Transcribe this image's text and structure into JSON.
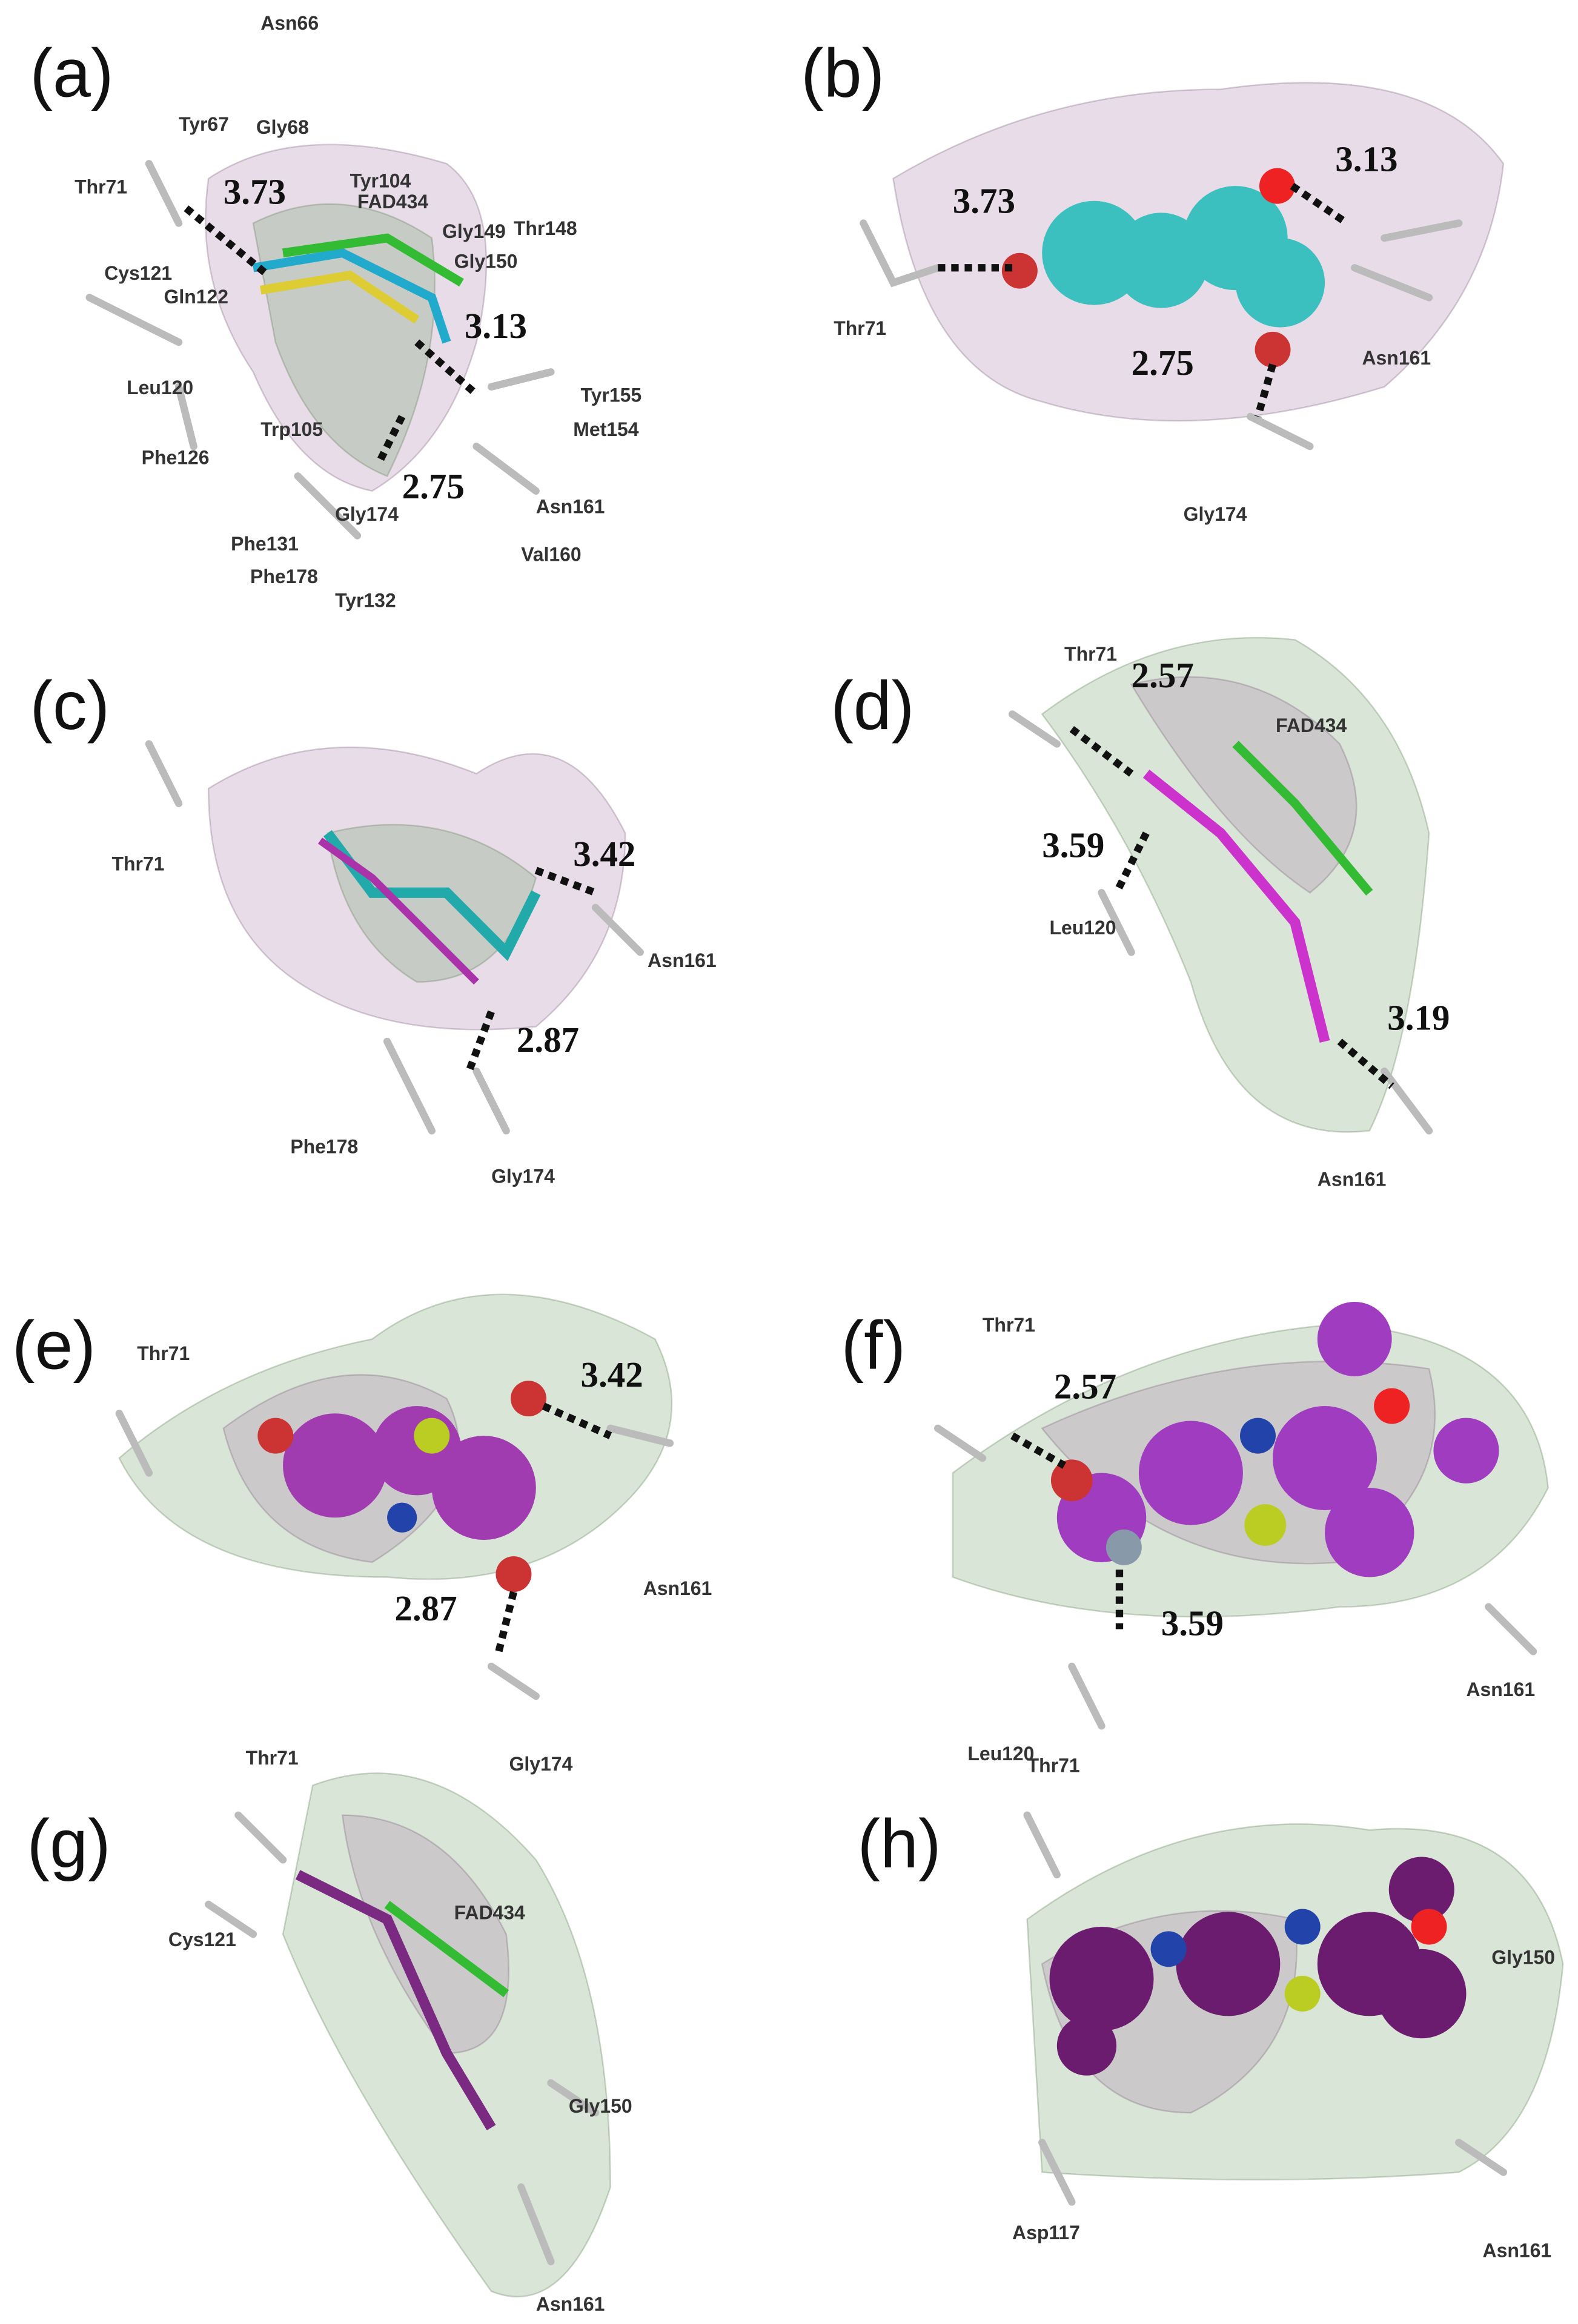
{
  "panels": [
    {
      "label": "(a)",
      "residues": [
        "Asn66",
        "Tyr67",
        "Gly68",
        "Thr71",
        "Tyr104",
        "FAD434",
        "Gly149",
        "Thr148",
        "Gly150",
        "Cys121",
        "Gln122",
        "Tyr155",
        "Leu120",
        "Met154",
        "Trp105",
        "Phe126",
        "Gly174",
        "Asn161",
        "Phe131",
        "Val160",
        "Phe178",
        "Tyr132"
      ],
      "distances": [
        "3.73",
        "3.13",
        "2.75"
      ]
    },
    {
      "label": "(b)",
      "residues": [
        "Thr71",
        "Asn161",
        "Gly174"
      ],
      "distances": [
        "3.73",
        "3.13",
        "2.75"
      ]
    },
    {
      "label": "(c)",
      "residues": [
        "Thr71",
        "Asn161",
        "Phe178",
        "Gly174"
      ],
      "distances": [
        "3.42",
        "2.87"
      ]
    },
    {
      "label": "(d)",
      "residues": [
        "Thr71",
        "FAD434",
        "Leu120",
        "Asn161"
      ],
      "distances": [
        "2.57",
        "3.59",
        "3.19"
      ]
    },
    {
      "label": "(e)",
      "residues": [
        "Thr71",
        "Asn161",
        "Gly174"
      ],
      "distances": [
        "3.42",
        "2.87"
      ]
    },
    {
      "label": "(f)",
      "residues": [
        "Thr71",
        "Leu120",
        "Asn161"
      ],
      "distances": [
        "2.57",
        "3.59"
      ]
    },
    {
      "label": "(g)",
      "residues": [
        "Thr71",
        "FAD434",
        "Cys121",
        "Gly150",
        "Asn161"
      ],
      "distances": []
    },
    {
      "label": "(h)",
      "residues": [
        "Thr71",
        "Gly150",
        "Asp117",
        "Asn161"
      ],
      "distances": []
    }
  ]
}
